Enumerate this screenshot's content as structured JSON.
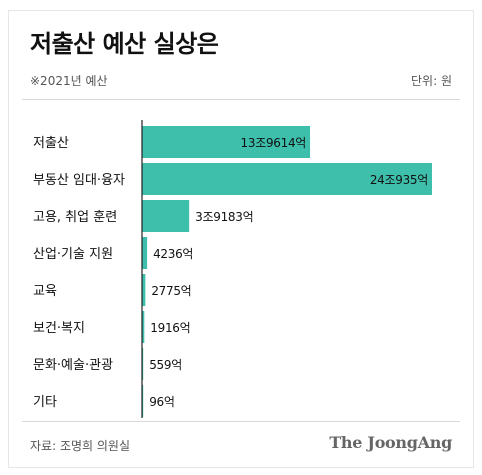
{
  "header": {
    "title": "저출산 예산 실상은",
    "subtitle": "※2021년 예산",
    "unit_label": "단위: 원"
  },
  "footer": {
    "source": "자료: 조명희 의원실",
    "logo": "The JoongAng"
  },
  "colors": {
    "bar": "#3dbfab",
    "axis": "#222222",
    "text": "#111111",
    "muted": "#555555"
  },
  "chart_data": {
    "type": "bar",
    "orientation": "horizontal",
    "unit": "억원",
    "categories": [
      "저출산",
      "부동산 임대·융자",
      "고용, 취업 훈련",
      "산업·기술 지원",
      "교육",
      "보건·복지",
      "문화·예술·관광",
      "기타"
    ],
    "values": [
      139614,
      240935,
      39183,
      4236,
      2775,
      1916,
      559,
      96
    ],
    "value_labels": [
      "13조9614억",
      "24조935억",
      "3조9183억",
      "4236억",
      "2775억",
      "1916억",
      "559억",
      "96억"
    ],
    "title": "저출산 예산 실상은",
    "xlabel": "",
    "ylabel": "",
    "grid": false,
    "legend": "none"
  }
}
